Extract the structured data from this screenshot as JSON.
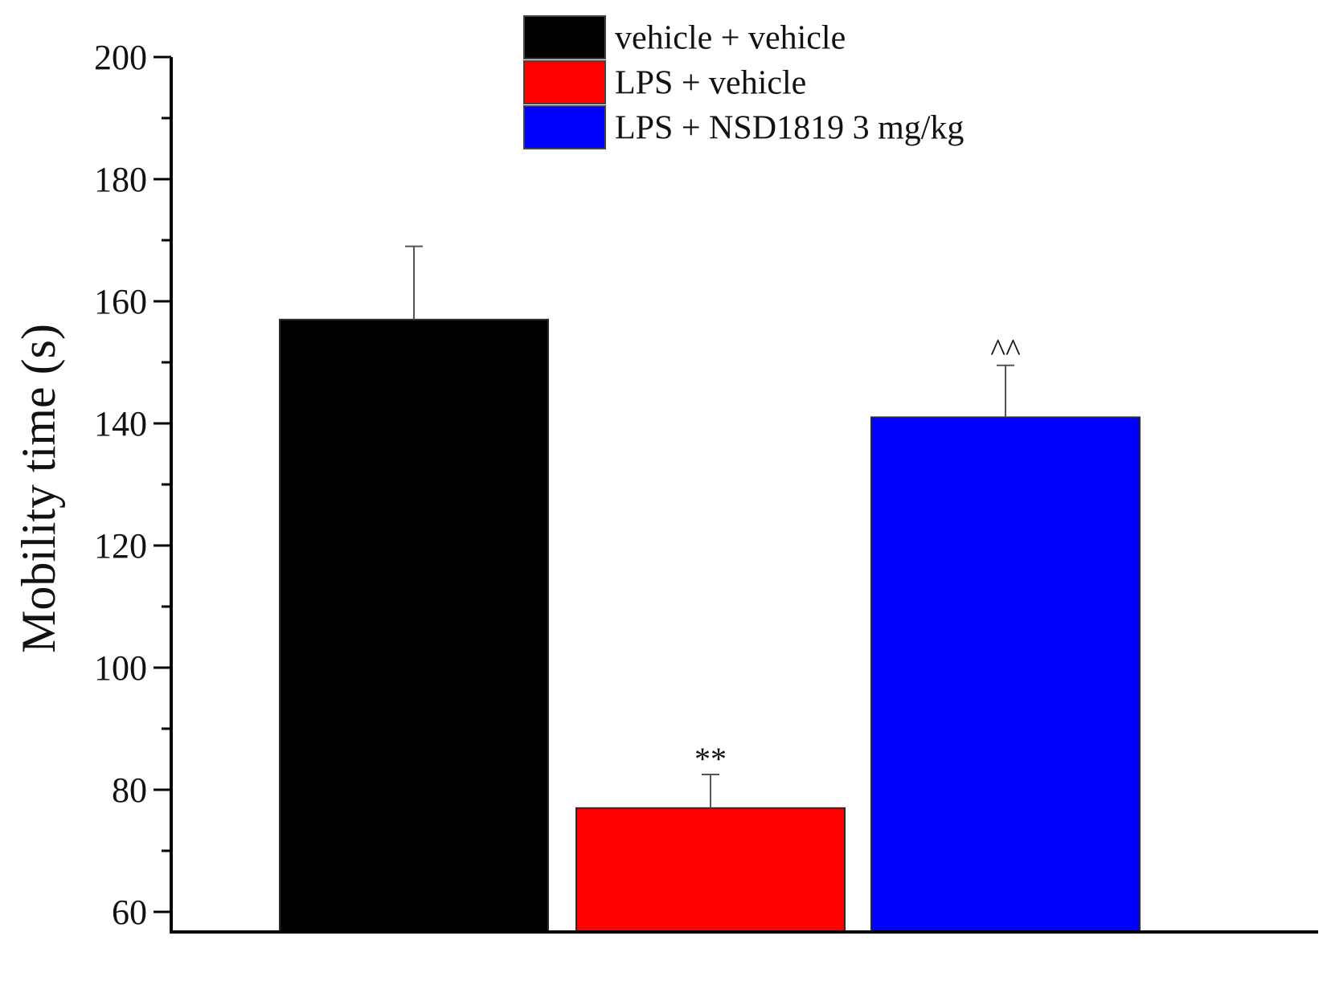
{
  "chart_data": {
    "type": "bar",
    "title": "",
    "xlabel": "",
    "ylabel": "Mobility time (s)",
    "ylim": [
      50,
      200
    ],
    "yticks": [
      60,
      80,
      100,
      120,
      140,
      160,
      180,
      200
    ],
    "grid": false,
    "legend_position": "top-center",
    "categories": [
      "vehicle + vehicle",
      "LPS + vehicle",
      "LPS + NSD1819 3 mg/kg"
    ],
    "values": [
      157,
      77,
      141
    ],
    "errors": [
      12,
      5.5,
      8.5
    ],
    "colors": [
      "#000000",
      "#ff0000",
      "#0000ff"
    ],
    "annotations": [
      "",
      "**",
      "^^"
    ]
  }
}
